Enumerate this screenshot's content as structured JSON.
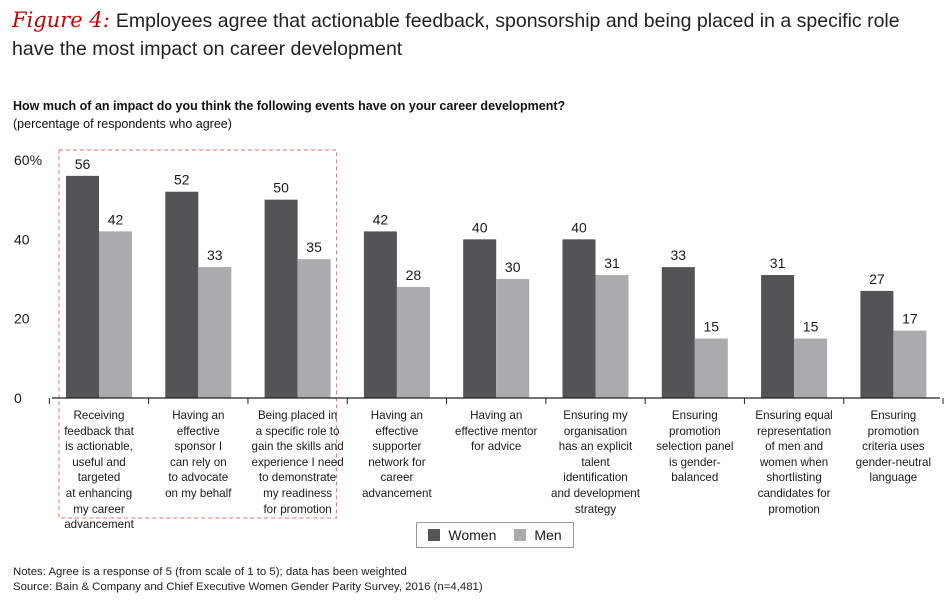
{
  "heading": {
    "figure_label": "Figure 4:",
    "title": "Employees agree that actionable feedback, sponsorship and being placed in a specific role have the most impact on career development"
  },
  "question": "How much of an impact do you think the following events have on your career development?",
  "unit_note": "(percentage of respondents who agree)",
  "colors": {
    "women": "#545456",
    "men": "#ababad",
    "highlight": "#e8736f",
    "axis": "#222222"
  },
  "chart_data": {
    "type": "bar",
    "categories": [
      "Receiving feedback that is actionable, useful and targeted at enhancing my career advancement",
      "Having an effective sponsor I can rely on to advocate on my behalf",
      "Being placed in a specific role to gain the skills and experience I need to demonstrate my readiness for promotion",
      "Having an effective supporter network for career advancement",
      "Having an effective mentor for advice",
      "Ensuring my organisation has an explicit talent identification and development strategy",
      "Ensuring promotion selection panel is gender-balanced",
      "Ensuring equal representation of men and women when shortlisting candidates for promotion",
      "Ensuring promotion criteria uses gender-neutral language"
    ],
    "category_lines": [
      [
        "Receiving",
        "feedback that",
        "is actionable,",
        "useful and targeted",
        "at enhancing",
        "my career",
        "advancement"
      ],
      [
        "Having an",
        "effective",
        "sponsor I",
        "can rely on",
        "to advocate",
        "on my behalf"
      ],
      [
        "Being placed in",
        "a specific role to",
        "gain the skills and",
        "experience I need",
        "to demonstrate",
        "my readiness",
        "for promotion"
      ],
      [
        "Having an",
        "effective",
        "supporter",
        "network for",
        "career",
        "advancement"
      ],
      [
        "Having an",
        "effective mentor",
        "for advice"
      ],
      [
        "Ensuring my",
        "organisation",
        "has an explicit",
        "talent identification",
        "and development",
        "strategy"
      ],
      [
        "Ensuring",
        "promotion",
        "selection panel",
        "is gender-",
        "balanced"
      ],
      [
        "Ensuring equal",
        "representation",
        "of men and",
        "women when",
        "shortlisting",
        "candidates for",
        "promotion"
      ],
      [
        "Ensuring",
        "promotion",
        "criteria uses",
        "gender-neutral",
        "language"
      ]
    ],
    "series": [
      {
        "name": "Women",
        "values": [
          56,
          52,
          50,
          42,
          40,
          40,
          33,
          31,
          27
        ]
      },
      {
        "name": "Men",
        "values": [
          42,
          33,
          35,
          28,
          30,
          31,
          15,
          15,
          17
        ]
      }
    ],
    "ylim": [
      0,
      60
    ],
    "yticks": [
      "0",
      "20",
      "40",
      "60%"
    ],
    "grid": false,
    "legend_position": "bottom-center",
    "highlighted_categories": [
      0,
      1,
      2
    ]
  },
  "legend": {
    "women_label": "Women",
    "men_label": "Men"
  },
  "notes": {
    "line1": "Notes: Agree is a response of 5 (from scale of 1 to 5); data has been weighted",
    "line2": "Source: Bain & Company and Chief Executive Women Gender Parity Survey, 2016 (n=4,481)"
  }
}
